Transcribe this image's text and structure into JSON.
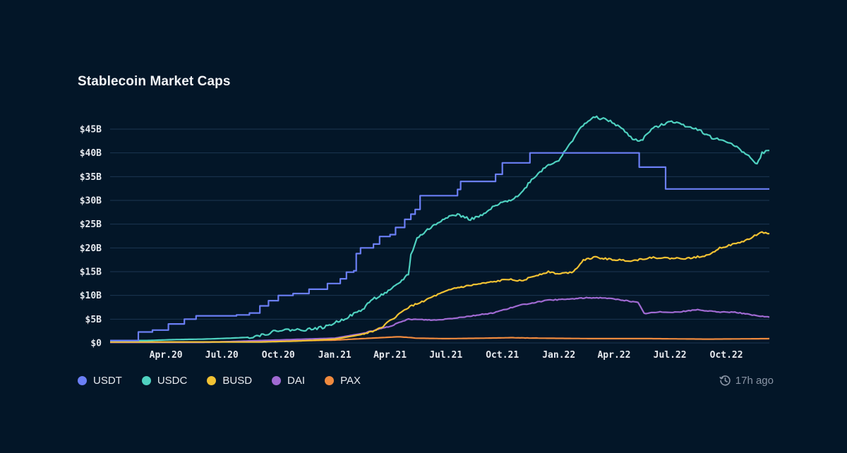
{
  "chart_data": {
    "type": "line",
    "title": "Stablecoin Market Caps",
    "xlabel": "",
    "ylabel": "",
    "x_start": "2020-01-01",
    "x_end": "2022-12-10",
    "x_ticks": [
      {
        "date": "2020-04-01",
        "label": "Apr.20"
      },
      {
        "date": "2020-07-01",
        "label": "Jul.20"
      },
      {
        "date": "2020-10-01",
        "label": "Oct.20"
      },
      {
        "date": "2021-01-01",
        "label": "Jan.21"
      },
      {
        "date": "2021-04-01",
        "label": "Apr.21"
      },
      {
        "date": "2021-07-01",
        "label": "Jul.21"
      },
      {
        "date": "2021-10-01",
        "label": "Oct.21"
      },
      {
        "date": "2022-01-01",
        "label": "Jan.22"
      },
      {
        "date": "2022-04-01",
        "label": "Apr.22"
      },
      {
        "date": "2022-07-01",
        "label": "Jul.22"
      },
      {
        "date": "2022-10-01",
        "label": "Oct.22"
      }
    ],
    "y_ticks": [
      {
        "value": 0,
        "label": "$0"
      },
      {
        "value": 5,
        "label": "$5B"
      },
      {
        "value": 10,
        "label": "$10B"
      },
      {
        "value": 15,
        "label": "$15B"
      },
      {
        "value": 20,
        "label": "$20B"
      },
      {
        "value": 25,
        "label": "$25B"
      },
      {
        "value": 30,
        "label": "$30B"
      },
      {
        "value": 35,
        "label": "$35B"
      },
      {
        "value": 40,
        "label": "$40B"
      },
      {
        "value": 45,
        "label": "$45B"
      }
    ],
    "ylim": [
      0,
      45
    ],
    "grid": true,
    "legend_position": "bottom-left",
    "series": [
      {
        "name": "USDT",
        "color": "#6b7ff5",
        "step": true,
        "points": [
          [
            "2020-01-01",
            0.5
          ],
          [
            "2020-02-15",
            0.5
          ],
          [
            "2020-02-16",
            2.3
          ],
          [
            "2020-03-10",
            2.7
          ],
          [
            "2020-04-05",
            4.0
          ],
          [
            "2020-05-01",
            5.0
          ],
          [
            "2020-05-20",
            5.7
          ],
          [
            "2020-07-25",
            5.9
          ],
          [
            "2020-08-15",
            6.3
          ],
          [
            "2020-09-01",
            7.8
          ],
          [
            "2020-09-15",
            8.9
          ],
          [
            "2020-10-01",
            10.0
          ],
          [
            "2020-10-25",
            10.4
          ],
          [
            "2020-11-20",
            11.3
          ],
          [
            "2020-12-20",
            12.5
          ],
          [
            "2021-01-10",
            13.5
          ],
          [
            "2021-01-20",
            14.9
          ],
          [
            "2021-02-01",
            15.2
          ],
          [
            "2021-02-05",
            18.8
          ],
          [
            "2021-02-12",
            20.0
          ],
          [
            "2021-03-05",
            20.8
          ],
          [
            "2021-03-15",
            22.4
          ],
          [
            "2021-04-01",
            22.8
          ],
          [
            "2021-04-10",
            24.3
          ],
          [
            "2021-04-25",
            26.0
          ],
          [
            "2021-05-05",
            27.1
          ],
          [
            "2021-05-12",
            28.1
          ],
          [
            "2021-05-20",
            31.0
          ],
          [
            "2021-07-15",
            31.0
          ],
          [
            "2021-07-20",
            32.3
          ],
          [
            "2021-07-25",
            34.0
          ],
          [
            "2021-09-15",
            34.0
          ],
          [
            "2021-09-20",
            35.5
          ],
          [
            "2021-10-01",
            37.9
          ],
          [
            "2021-11-10",
            37.9
          ],
          [
            "2021-11-15",
            40.0
          ],
          [
            "2022-05-10",
            40.0
          ],
          [
            "2022-05-12",
            37.0
          ],
          [
            "2022-06-20",
            37.0
          ],
          [
            "2022-06-24",
            32.4
          ],
          [
            "2022-12-10",
            32.4
          ]
        ]
      },
      {
        "name": "USDC",
        "color": "#4fd1c0",
        "step": false,
        "points": [
          [
            "2020-01-01",
            0.5
          ],
          [
            "2020-03-01",
            0.5
          ],
          [
            "2020-04-15",
            0.7
          ],
          [
            "2020-06-01",
            0.8
          ],
          [
            "2020-07-15",
            1.0
          ],
          [
            "2020-08-15",
            1.2
          ],
          [
            "2020-09-15",
            2.0
          ],
          [
            "2020-10-01",
            2.7
          ],
          [
            "2020-11-15",
            2.8
          ],
          [
            "2020-12-15",
            3.3
          ],
          [
            "2021-01-15",
            5.0
          ],
          [
            "2021-02-15",
            7.0
          ],
          [
            "2021-03-01",
            9.0
          ],
          [
            "2021-04-01",
            11.0
          ],
          [
            "2021-04-15",
            12.5
          ],
          [
            "2021-05-01",
            14.5
          ],
          [
            "2021-05-05",
            18.5
          ],
          [
            "2021-05-15",
            22.0
          ],
          [
            "2021-06-01",
            23.8
          ],
          [
            "2021-06-15",
            25.0
          ],
          [
            "2021-07-01",
            26.5
          ],
          [
            "2021-07-20",
            27.0
          ],
          [
            "2021-08-10",
            26.0
          ],
          [
            "2021-09-01",
            27.0
          ],
          [
            "2021-09-15",
            28.5
          ],
          [
            "2021-10-01",
            29.5
          ],
          [
            "2021-10-20",
            30.5
          ],
          [
            "2021-11-01",
            31.5
          ],
          [
            "2021-11-15",
            34.0
          ],
          [
            "2021-12-01",
            36.0
          ],
          [
            "2021-12-15",
            37.5
          ],
          [
            "2022-01-01",
            38.5
          ],
          [
            "2022-01-15",
            41.0
          ],
          [
            "2022-02-01",
            44.5
          ],
          [
            "2022-02-15",
            46.5
          ],
          [
            "2022-03-01",
            47.5
          ],
          [
            "2022-03-20",
            47.0
          ],
          [
            "2022-04-10",
            45.5
          ],
          [
            "2022-05-01",
            43.0
          ],
          [
            "2022-05-15",
            42.5
          ],
          [
            "2022-06-01",
            45.0
          ],
          [
            "2022-06-20",
            46.0
          ],
          [
            "2022-07-01",
            46.8
          ],
          [
            "2022-07-20",
            46.0
          ],
          [
            "2022-08-15",
            45.0
          ],
          [
            "2022-09-10",
            43.0
          ],
          [
            "2022-10-01",
            42.5
          ],
          [
            "2022-11-01",
            40.0
          ],
          [
            "2022-11-20",
            37.5
          ],
          [
            "2022-11-28",
            40.0
          ],
          [
            "2022-12-10",
            40.5
          ]
        ]
      },
      {
        "name": "BUSD",
        "color": "#f2c233",
        "step": false,
        "points": [
          [
            "2020-01-01",
            0.2
          ],
          [
            "2020-06-01",
            0.2
          ],
          [
            "2020-09-01",
            0.2
          ],
          [
            "2020-11-01",
            0.4
          ],
          [
            "2021-01-01",
            0.8
          ],
          [
            "2021-02-15",
            1.8
          ],
          [
            "2021-03-15",
            3.0
          ],
          [
            "2021-04-10",
            5.5
          ],
          [
            "2021-05-01",
            7.5
          ],
          [
            "2021-05-20",
            8.5
          ],
          [
            "2021-06-15",
            10.0
          ],
          [
            "2021-07-15",
            11.5
          ],
          [
            "2021-08-15",
            12.2
          ],
          [
            "2021-09-15",
            12.8
          ],
          [
            "2021-10-15",
            13.5
          ],
          [
            "2021-11-01",
            13.0
          ],
          [
            "2021-11-20",
            14.0
          ],
          [
            "2021-12-15",
            15.0
          ],
          [
            "2022-01-01",
            14.5
          ],
          [
            "2022-01-25",
            15.0
          ],
          [
            "2022-02-10",
            17.5
          ],
          [
            "2022-03-01",
            18.0
          ],
          [
            "2022-04-01",
            17.5
          ],
          [
            "2022-05-01",
            17.3
          ],
          [
            "2022-06-01",
            18.0
          ],
          [
            "2022-07-01",
            17.8
          ],
          [
            "2022-08-01",
            17.8
          ],
          [
            "2022-09-01",
            18.5
          ],
          [
            "2022-09-20",
            20.0
          ],
          [
            "2022-10-20",
            21.0
          ],
          [
            "2022-11-10",
            22.0
          ],
          [
            "2022-11-25",
            23.3
          ],
          [
            "2022-12-10",
            23.0
          ]
        ]
      },
      {
        "name": "DAI",
        "color": "#a06ad2",
        "step": false,
        "points": [
          [
            "2020-01-01",
            0.1
          ],
          [
            "2020-06-01",
            0.1
          ],
          [
            "2020-09-01",
            0.5
          ],
          [
            "2021-01-01",
            1.0
          ],
          [
            "2021-02-15",
            2.0
          ],
          [
            "2021-04-01",
            3.5
          ],
          [
            "2021-05-01",
            5.0
          ],
          [
            "2021-06-15",
            4.8
          ],
          [
            "2021-08-01",
            5.5
          ],
          [
            "2021-09-15",
            6.3
          ],
          [
            "2021-11-01",
            8.0
          ],
          [
            "2021-12-15",
            9.0
          ],
          [
            "2022-01-15",
            9.2
          ],
          [
            "2022-02-15",
            9.5
          ],
          [
            "2022-03-15",
            9.5
          ],
          [
            "2022-04-15",
            9.0
          ],
          [
            "2022-05-10",
            8.5
          ],
          [
            "2022-05-20",
            6.2
          ],
          [
            "2022-06-15",
            6.5
          ],
          [
            "2022-07-15",
            6.5
          ],
          [
            "2022-08-15",
            7.0
          ],
          [
            "2022-09-15",
            6.5
          ],
          [
            "2022-10-15",
            6.5
          ],
          [
            "2022-11-15",
            5.8
          ],
          [
            "2022-12-10",
            5.4
          ]
        ]
      },
      {
        "name": "PAX",
        "color": "#f08a3e",
        "step": false,
        "points": [
          [
            "2020-01-01",
            0.2
          ],
          [
            "2020-06-01",
            0.2
          ],
          [
            "2020-09-01",
            0.3
          ],
          [
            "2021-01-01",
            0.6
          ],
          [
            "2021-03-01",
            1.0
          ],
          [
            "2021-04-15",
            1.3
          ],
          [
            "2021-05-15",
            1.0
          ],
          [
            "2021-07-01",
            0.9
          ],
          [
            "2021-09-01",
            1.0
          ],
          [
            "2021-10-15",
            1.1
          ],
          [
            "2021-12-01",
            1.0
          ],
          [
            "2022-03-01",
            0.9
          ],
          [
            "2022-06-01",
            0.9
          ],
          [
            "2022-09-01",
            0.8
          ],
          [
            "2022-12-10",
            0.9
          ]
        ]
      }
    ]
  },
  "footer": {
    "updated_label": "17h ago"
  },
  "colors": {
    "background": "#031628",
    "grid": "#1c3752"
  }
}
